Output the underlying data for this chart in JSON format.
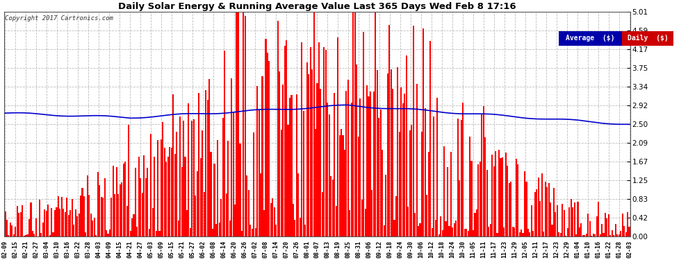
{
  "title": "Daily Solar Energy & Running Average Value Last 365 Days Wed Feb 8 17:16",
  "copyright": "Copyright 2017 Cartronics.com",
  "bar_color": "#ff0000",
  "avg_line_color": "#0000cc",
  "background_color": "#ffffff",
  "plot_bg_color": "#ffffff",
  "yticks": [
    0.0,
    0.42,
    0.83,
    1.25,
    1.67,
    2.09,
    2.5,
    2.92,
    3.34,
    3.75,
    4.17,
    4.59,
    5.01
  ],
  "ymax": 5.01,
  "legend_avg_bg": "#0000aa",
  "legend_daily_bg": "#cc0000",
  "legend_avg_text": "Average  ($)",
  "legend_daily_text": "Daily  ($)",
  "x_labels": [
    "02-09",
    "02-15",
    "02-21",
    "02-27",
    "03-04",
    "03-10",
    "03-16",
    "03-22",
    "03-28",
    "04-03",
    "04-09",
    "04-15",
    "04-21",
    "04-27",
    "05-03",
    "05-09",
    "05-15",
    "05-21",
    "05-27",
    "06-02",
    "06-08",
    "06-14",
    "06-20",
    "06-26",
    "07-02",
    "07-08",
    "07-14",
    "07-20",
    "07-26",
    "08-01",
    "08-07",
    "08-13",
    "08-19",
    "08-25",
    "08-31",
    "09-06",
    "09-12",
    "09-18",
    "09-24",
    "09-30",
    "10-06",
    "10-12",
    "10-18",
    "10-24",
    "10-30",
    "11-05",
    "11-11",
    "11-17",
    "11-23",
    "11-29",
    "12-05",
    "12-11",
    "12-17",
    "12-23",
    "12-29",
    "01-04",
    "01-10",
    "01-16",
    "01-22",
    "01-28",
    "02-03"
  ],
  "avg_line": [
    2.75,
    2.74,
    2.73,
    2.72,
    2.71,
    2.7,
    2.7,
    2.69,
    2.68,
    2.67,
    2.68,
    2.68,
    2.67,
    2.66,
    2.65,
    2.65,
    2.64,
    2.64,
    2.63,
    2.63,
    2.63,
    2.63,
    2.63,
    2.63,
    2.64,
    2.64,
    2.65,
    2.65,
    2.66,
    2.67,
    2.68,
    2.69,
    2.7,
    2.71,
    2.72,
    2.73,
    2.74,
    2.75,
    2.76,
    2.77,
    2.78,
    2.79,
    2.8,
    2.8,
    2.81,
    2.82,
    2.83,
    2.84,
    2.85,
    2.86,
    2.87,
    2.88,
    2.88,
    2.89,
    2.9,
    2.9,
    2.91,
    2.91,
    2.92,
    2.92,
    2.92,
    2.92,
    2.92,
    2.91,
    2.9,
    2.89,
    2.87,
    2.86,
    2.84,
    2.82,
    2.8,
    2.78,
    2.76,
    2.74,
    2.72,
    2.7,
    2.68,
    2.66,
    2.64,
    2.62,
    2.6,
    2.58,
    2.56,
    2.54,
    2.52,
    2.51,
    2.5,
    2.49,
    2.48,
    2.47,
    2.46,
    2.45,
    2.44,
    2.43,
    2.42,
    2.41,
    2.4,
    2.39,
    2.38,
    2.38,
    2.37,
    2.36,
    2.35,
    2.35,
    2.34,
    2.33,
    2.33,
    2.32,
    2.32,
    2.31,
    2.31,
    2.3,
    2.3,
    2.29,
    2.29,
    2.29,
    2.28,
    2.28,
    2.28,
    2.27,
    2.27,
    2.27,
    2.26,
    2.26,
    2.26,
    2.25,
    2.25,
    2.25,
    2.24,
    2.24,
    2.24,
    2.24,
    2.23,
    2.23,
    2.23,
    2.23,
    2.22,
    2.22,
    2.22,
    2.22,
    2.22,
    2.21,
    2.21,
    2.21,
    2.21,
    2.21,
    2.2,
    2.2,
    2.2,
    2.2,
    2.5
  ]
}
